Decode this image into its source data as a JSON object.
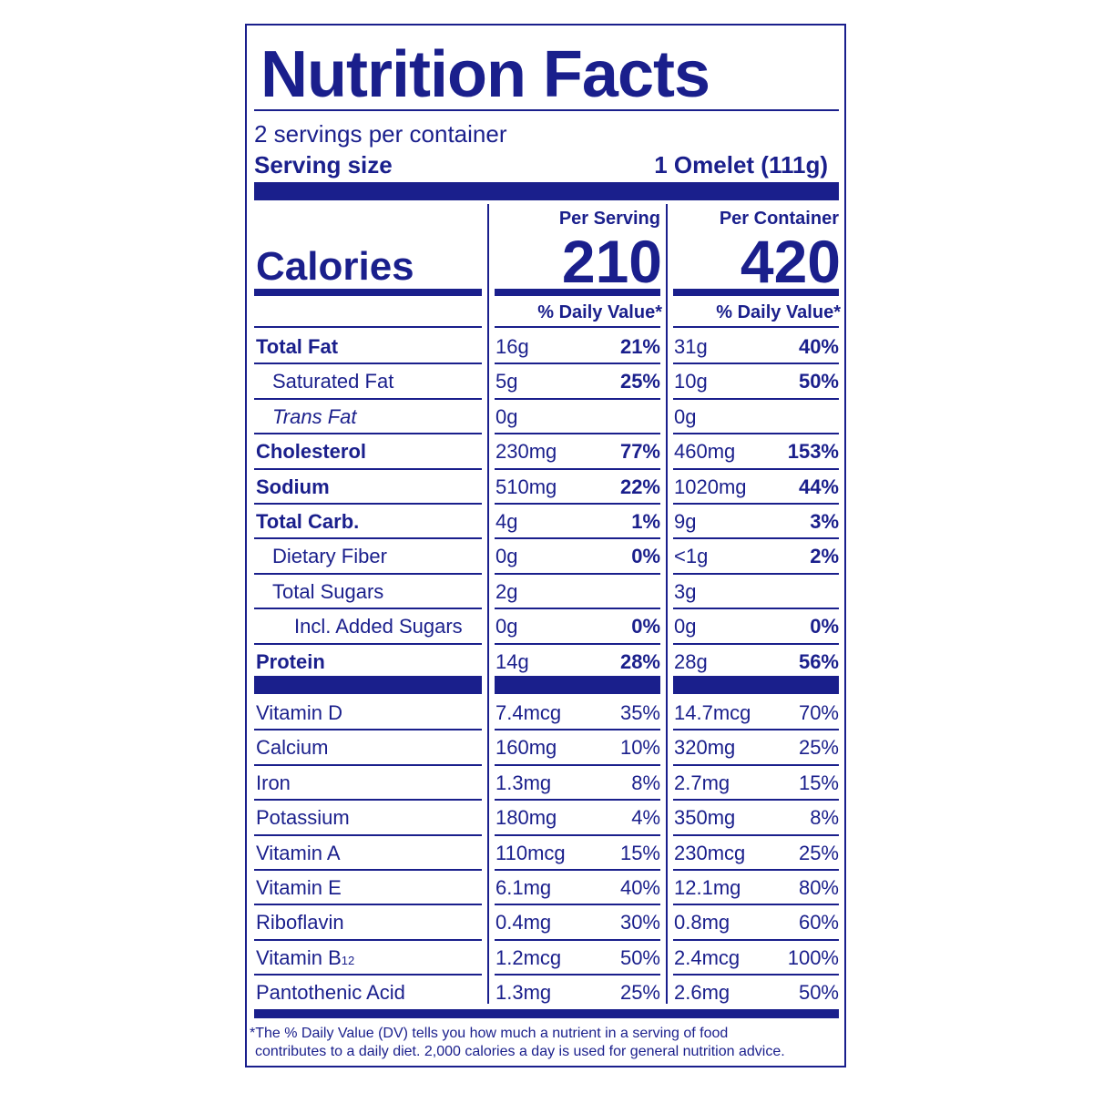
{
  "title": "Nutrition Facts",
  "servings_per_container": "2 servings per container",
  "serving_size_label": "Serving size",
  "serving_size_value": "1 Omelet (111g)",
  "calories_label": "Calories",
  "columns": {
    "per_serving": "Per Serving",
    "per_container": "Per Container",
    "calories_serving": "210",
    "calories_container": "420",
    "dv_header_serving": "% Daily Value*",
    "dv_header_container": "% Daily Value*"
  },
  "nutrients": [
    {
      "name": "Total Fat",
      "style": "bold",
      "indent": 0,
      "s_amt": "16g",
      "s_dv": "21%",
      "c_amt": "31g",
      "c_dv": "40%"
    },
    {
      "name": "Saturated Fat",
      "style": "normal",
      "indent": 1,
      "s_amt": "5g",
      "s_dv": "25%",
      "c_amt": "10g",
      "c_dv": "50%"
    },
    {
      "name": "Trans Fat",
      "style": "italic",
      "indent": 1,
      "s_amt": "0g",
      "s_dv": "",
      "c_amt": "0g",
      "c_dv": ""
    },
    {
      "name": "Cholesterol",
      "style": "bold",
      "indent": 0,
      "s_amt": "230mg",
      "s_dv": "77%",
      "c_amt": "460mg",
      "c_dv": "153%"
    },
    {
      "name": "Sodium",
      "style": "bold",
      "indent": 0,
      "s_amt": "510mg",
      "s_dv": "22%",
      "c_amt": "1020mg",
      "c_dv": "44%"
    },
    {
      "name": "Total Carb.",
      "style": "bold",
      "indent": 0,
      "s_amt": "4g",
      "s_dv": "1%",
      "c_amt": "9g",
      "c_dv": "3%"
    },
    {
      "name": "Dietary Fiber",
      "style": "normal",
      "indent": 1,
      "s_amt": "0g",
      "s_dv": "0%",
      "c_amt": "<1g",
      "c_dv": "2%"
    },
    {
      "name": "Total Sugars",
      "style": "normal",
      "indent": 1,
      "s_amt": "2g",
      "s_dv": "",
      "c_amt": "3g",
      "c_dv": ""
    },
    {
      "name": "Incl. Added Sugars",
      "style": "normal",
      "indent": 2,
      "s_amt": "0g",
      "s_dv": "0%",
      "c_amt": "0g",
      "c_dv": "0%"
    },
    {
      "name": "Protein",
      "style": "bold",
      "indent": 0,
      "s_amt": "14g",
      "s_dv": "28%",
      "c_amt": "28g",
      "c_dv": "56%"
    }
  ],
  "vitamins": [
    {
      "name": "Vitamin D",
      "s_amt": "7.4mcg",
      "s_dv": "35%",
      "c_amt": "14.7mcg",
      "c_dv": "70%"
    },
    {
      "name": "Calcium",
      "s_amt": "160mg",
      "s_dv": "10%",
      "c_amt": "320mg",
      "c_dv": "25%"
    },
    {
      "name": "Iron",
      "s_amt": "1.3mg",
      "s_dv": "8%",
      "c_amt": "2.7mg",
      "c_dv": "15%"
    },
    {
      "name": "Potassium",
      "s_amt": "180mg",
      "s_dv": "4%",
      "c_amt": "350mg",
      "c_dv": "8%"
    },
    {
      "name": "Vitamin A",
      "s_amt": "110mcg",
      "s_dv": "15%",
      "c_amt": "230mcg",
      "c_dv": "25%"
    },
    {
      "name": "Vitamin E",
      "s_amt": "6.1mg",
      "s_dv": "40%",
      "c_amt": "12.1mg",
      "c_dv": "80%"
    },
    {
      "name": "Riboflavin",
      "s_amt": "0.4mg",
      "s_dv": "30%",
      "c_amt": "0.8mg",
      "c_dv": "60%"
    },
    {
      "name": "Vitamin B",
      "sub": "12",
      "s_amt": "1.2mcg",
      "s_dv": "50%",
      "c_amt": "2.4mcg",
      "c_dv": "100%"
    },
    {
      "name": "Pantothenic Acid",
      "s_amt": "1.3mg",
      "s_dv": "25%",
      "c_amt": "2.6mg",
      "c_dv": "50%"
    }
  ],
  "footnote_line1": "*The % Daily Value (DV) tells you how much a nutrient in a serving of food",
  "footnote_line2": "contributes to a daily diet. 2,000 calories a day is used for general nutrition advice.",
  "colors": {
    "ink": "#1a1f8c",
    "background": "#ffffff"
  }
}
